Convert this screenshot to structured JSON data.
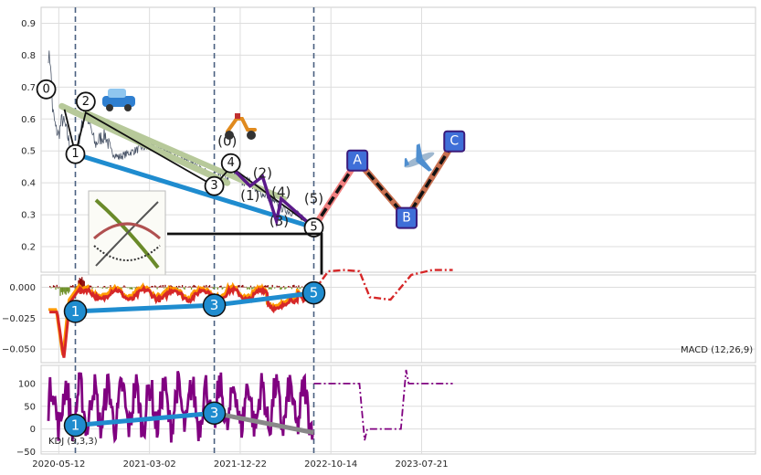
{
  "chart_data": [
    {
      "panel": "price",
      "type": "line",
      "yticks": [
        0.2,
        0.3,
        0.4,
        0.5,
        0.6,
        0.7,
        0.8,
        0.9
      ],
      "ylim": [
        0.12,
        0.95
      ],
      "vlines": [
        "2020-07-27",
        "2021-09-03",
        "2022-10-14"
      ],
      "series": [
        {
          "values": [
            [
              0,
              0.8
            ],
            [
              4,
              0.78
            ],
            [
              8,
              0.63
            ],
            [
              14,
              0.57
            ],
            [
              20,
              0.55
            ],
            [
              26,
              0.6
            ],
            [
              32,
              0.58
            ],
            [
              38,
              0.54
            ],
            [
              44,
              0.5
            ],
            [
              52,
              0.49
            ],
            [
              62,
              0.56
            ],
            [
              72,
              0.62
            ],
            [
              80,
              0.58
            ],
            [
              90,
              0.52
            ],
            [
              100,
              0.54
            ],
            [
              110,
              0.55
            ],
            [
              120,
              0.5
            ],
            [
              135,
              0.48
            ],
            [
              150,
              0.49
            ],
            [
              165,
              0.5
            ],
            [
              180,
              0.51
            ],
            [
              200,
              0.51
            ],
            [
              215,
              0.51
            ],
            [
              230,
              0.5
            ],
            [
              245,
              0.49
            ],
            [
              260,
              0.48
            ],
            [
              275,
              0.46
            ],
            [
              290,
              0.46
            ],
            [
              300,
              0.44
            ],
            [
              310,
              0.42
            ],
            [
              320,
              0.43
            ],
            [
              335,
              0.42
            ],
            [
              345,
              0.41
            ],
            [
              355,
              0.44
            ],
            [
              365,
              0.42
            ],
            [
              375,
              0.4
            ],
            [
              385,
              0.41
            ],
            [
              395,
              0.39
            ],
            [
              405,
              0.37
            ],
            [
              420,
              0.36
            ],
            [
              435,
              0.34
            ],
            [
              450,
              0.32
            ],
            [
              465,
              0.31
            ],
            [
              480,
              0.3
            ],
            [
              495,
              0.29
            ],
            [
              505,
              0.28
            ],
            [
              512,
              0.26
            ]
          ]
        }
      ],
      "wave_points": [
        {
          "label": "0",
          "x": 31,
          "y": 0.63
        },
        {
          "label": "1",
          "x": 52,
          "y": 0.49
        },
        {
          "label": "2",
          "x": 72,
          "y": 0.62
        },
        {
          "label": "3",
          "x": 320,
          "y": 0.39
        },
        {
          "label": "4",
          "x": 352,
          "y": 0.45
        },
        {
          "label": "5",
          "x": 512,
          "y": 0.26
        }
      ],
      "sub_wave_labels": [
        {
          "label": "(0)",
          "x": 345,
          "y": 0.53
        },
        {
          "label": "(1)",
          "x": 389,
          "y": 0.36
        },
        {
          "label": "(2)",
          "x": 413,
          "y": 0.43
        },
        {
          "label": "(3)",
          "x": 445,
          "y": 0.28
        },
        {
          "label": "(4)",
          "x": 449,
          "y": 0.37
        },
        {
          "label": "(5)",
          "x": 512,
          "y": 0.35
        }
      ],
      "projection": [
        {
          "label": "A",
          "x": 596,
          "y": 0.47
        },
        {
          "label": "B",
          "x": 691,
          "y": 0.29
        },
        {
          "label": "C",
          "x": 783,
          "y": 0.53
        }
      ],
      "icon_labels": [
        "car-icon",
        "scooter-icon",
        "airplane-icon"
      ]
    },
    {
      "panel": "macd",
      "type": "line",
      "label": "MACD (12,26,9)",
      "yticks": [
        0.0,
        -0.025,
        -0.05
      ],
      "ytick_labels": [
        "0.000",
        "−0.025",
        "−0.050"
      ],
      "ylim": [
        -0.061,
        0.01
      ],
      "divergence_points": [
        {
          "label": "1",
          "x": 52,
          "y": -0.0195
        },
        {
          "label": "3",
          "x": 320,
          "y": -0.0145
        },
        {
          "label": "5",
          "x": 512,
          "y": -0.0045
        }
      ]
    },
    {
      "panel": "kdj",
      "type": "line",
      "label": "KDJ (9,3,3)",
      "yticks": [
        100,
        50,
        0,
        -50
      ],
      "ytick_labels": [
        "100",
        "50",
        "0",
        "−50"
      ],
      "ylim": [
        -55,
        140
      ],
      "divergence_points": [
        {
          "label": "1",
          "x": 52,
          "y": 8
        },
        {
          "label": "3",
          "x": 320,
          "y": 35
        }
      ]
    }
  ],
  "x_axis": {
    "tick_labels": [
      "2020-05-12",
      "2021-03-02",
      "2021-12-22",
      "2022-10-14",
      "2023-07-21"
    ]
  },
  "colors": {
    "price_line": "#4a5568",
    "trend_blue": "#1f8ccf",
    "trend_green": "#b7c99a",
    "wave_purple": "#5b1a8a",
    "pink_projection": "#f08080",
    "brown_projection": "#c87050",
    "macd_line": "#ff9900",
    "macd_signal": "#d62728",
    "kdj_line": "#800080",
    "vline": "#4a6080"
  }
}
